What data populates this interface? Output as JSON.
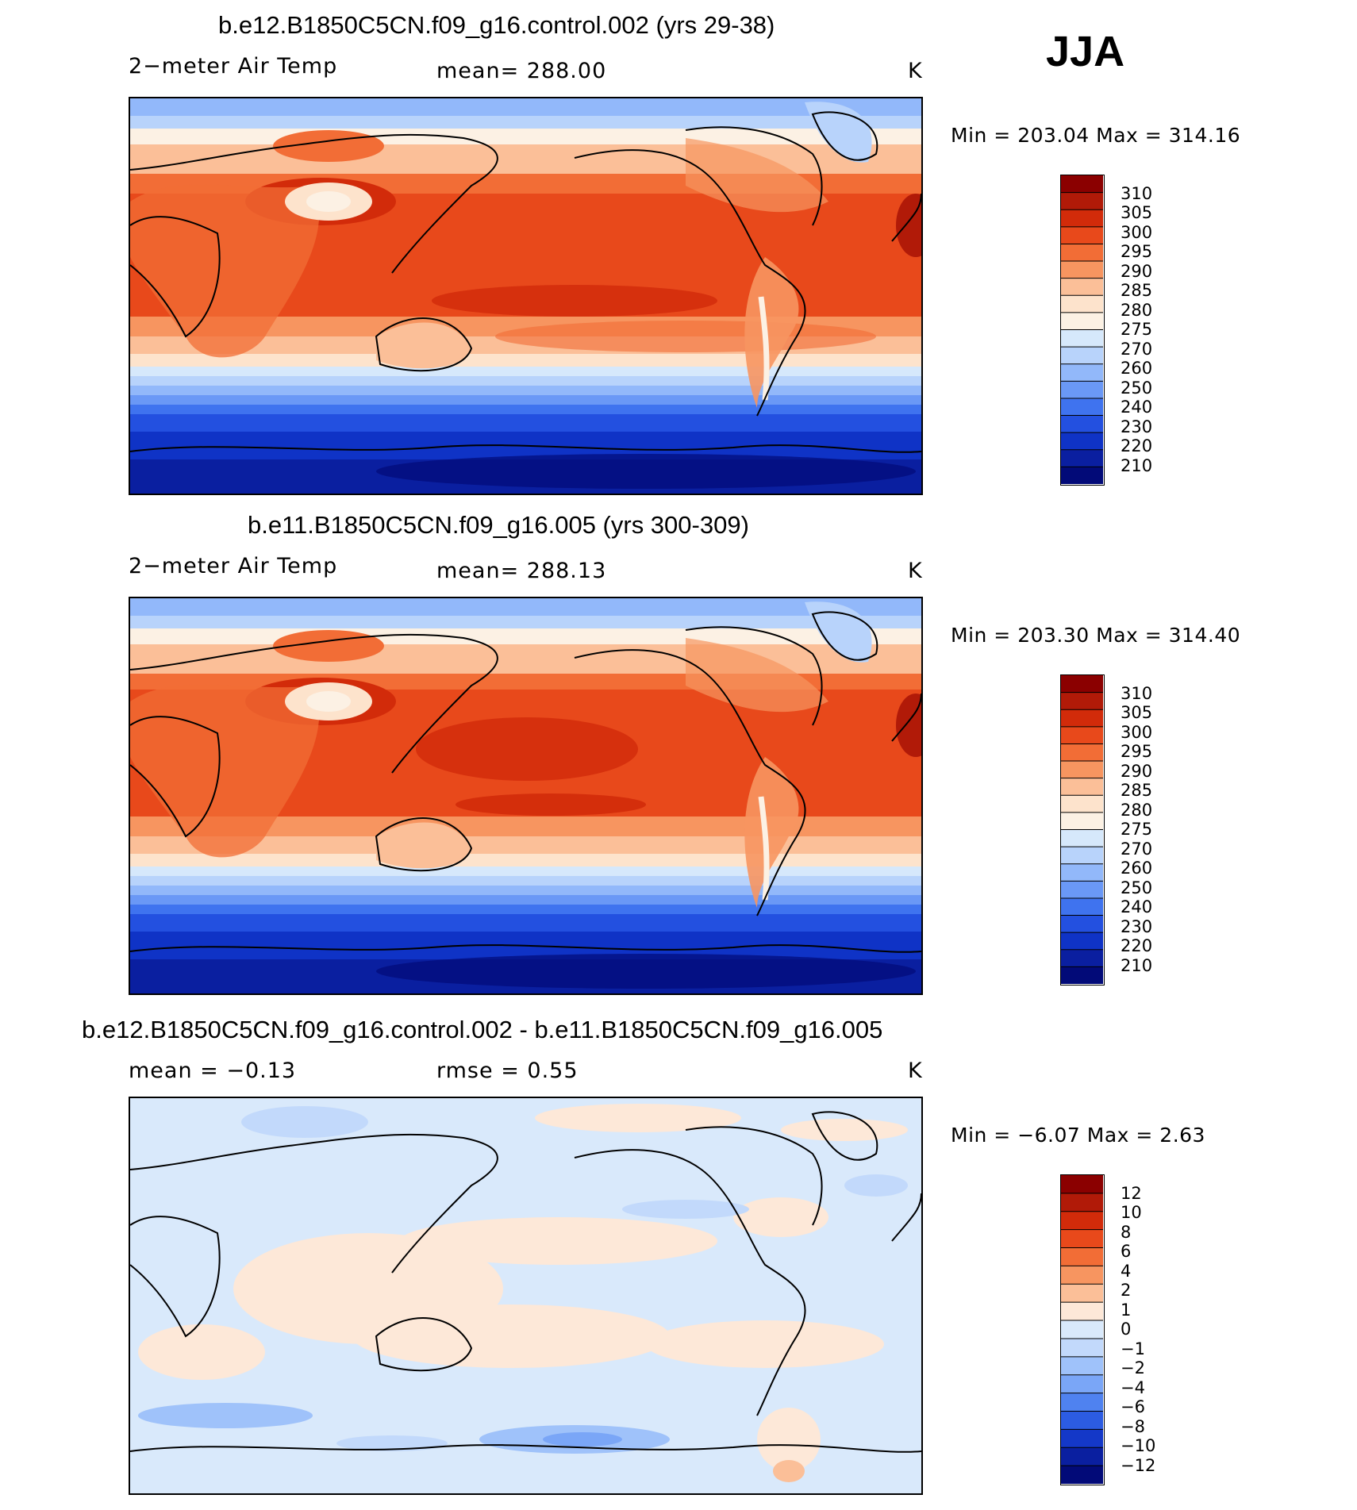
{
  "season": "JJA",
  "panels": [
    {
      "title": "b.e12.B1850C5CN.f09_g16.control.002 (yrs 29-38)",
      "left_label": "2−meter Air Temp",
      "mid_label": "mean=  288.00",
      "units": "K",
      "minmax": "Min  =  203.04  Max  =  314.16",
      "kind": "abs"
    },
    {
      "title": "b.e11.B1850C5CN.f09_g16.005 (yrs 300-309)",
      "left_label": "2−meter Air Temp",
      "mid_label": "mean=  288.13",
      "units": "K",
      "minmax": "Min  =  203.30  Max  =  314.40",
      "kind": "abs"
    },
    {
      "title": "b.e12.B1850C5CN.f09_g16.control.002 - b.e11.B1850C5CN.f09_g16.005",
      "left_label": "mean =   −0.13",
      "mid_label": "rmse =    0.55",
      "units": "K",
      "minmax": "Min  =   −6.07  Max  =    2.63",
      "kind": "diff"
    }
  ],
  "colorbars": {
    "abs": {
      "labels": [
        "310",
        "305",
        "300",
        "295",
        "290",
        "285",
        "280",
        "275",
        "270",
        "260",
        "250",
        "240",
        "230",
        "220",
        "210"
      ],
      "colors": [
        "#8b0000",
        "#b11a08",
        "#d22b0a",
        "#e8491b",
        "#f26d36",
        "#f79560",
        "#fbbf98",
        "#fde3cc",
        "#fcf1e4",
        "#d6e8fb",
        "#b8d3fb",
        "#92b8fa",
        "#6a98f6",
        "#3f73ef",
        "#2350e0",
        "#0f33c6",
        "#0a1fa0",
        "#020a78"
      ]
    },
    "diff": {
      "labels": [
        "12",
        "10",
        "8",
        "6",
        "4",
        "2",
        "1",
        "0",
        "−1",
        "−2",
        "−4",
        "−6",
        "−8",
        "−10",
        "−12"
      ],
      "colors": [
        "#8b0000",
        "#b11a08",
        "#d22b0a",
        "#e8491b",
        "#f26d36",
        "#f79560",
        "#fbbf98",
        "#fde8d8",
        "#d9e9fb",
        "#c2d9fb",
        "#9fc2fa",
        "#7aa6f7",
        "#4f82f0",
        "#2c5ce2",
        "#1438c8",
        "#0a1fa0",
        "#020a78"
      ]
    }
  }
}
